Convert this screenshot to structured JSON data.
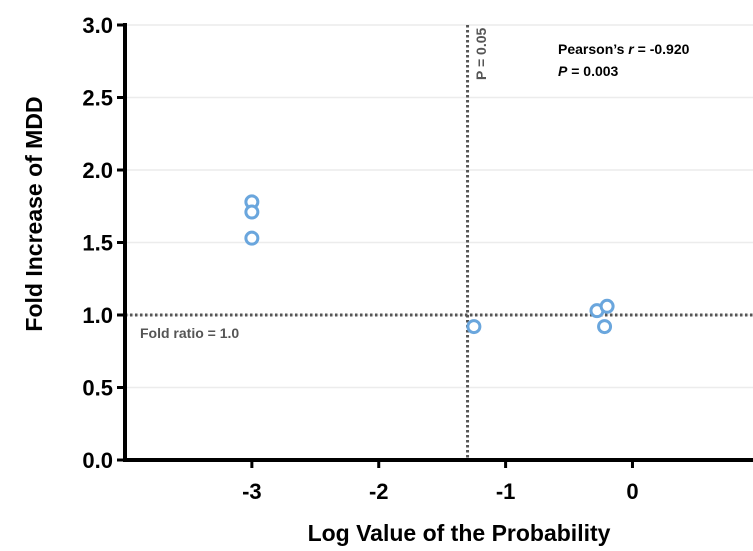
{
  "chart_data": {
    "type": "scatter",
    "xlabel": "Log Value of the Probability",
    "ylabel": "Fold Increase of MDD",
    "xlim": [
      -4.0,
      0.95
    ],
    "ylim": [
      0.0,
      3.0
    ],
    "x_ticks": [
      -3,
      -2,
      -1,
      0
    ],
    "x_tick_labels": [
      "-3",
      "-2",
      "-1",
      "0"
    ],
    "y_ticks": [
      0.0,
      0.5,
      1.0,
      1.5,
      2.0,
      2.5,
      3.0
    ],
    "y_tick_labels": [
      "0.0",
      "0.5",
      "1.0",
      "1.5",
      "2.0",
      "2.5",
      "3.0"
    ],
    "grid": "horizontal",
    "marker_color": "#6aa6dd",
    "points": [
      {
        "x": -3.0,
        "y": 1.78
      },
      {
        "x": -3.0,
        "y": 1.71
      },
      {
        "x": -3.0,
        "y": 1.53
      },
      {
        "x": -1.25,
        "y": 0.92
      },
      {
        "x": -0.28,
        "y": 1.03
      },
      {
        "x": -0.2,
        "y": 1.06
      },
      {
        "x": -0.22,
        "y": 0.92
      }
    ],
    "reference_lines": [
      {
        "axis": "x",
        "value": -1.3,
        "label": "P = 0.05"
      },
      {
        "axis": "y",
        "value": 1.0,
        "label": "Fold ratio = 1.0"
      }
    ],
    "annotation": {
      "stat_line_prefix": "Pearson’s ",
      "stat_symbol": "r",
      "stat_value": " = -0.920",
      "p_symbol": "P",
      "p_value": " = 0.003"
    }
  }
}
